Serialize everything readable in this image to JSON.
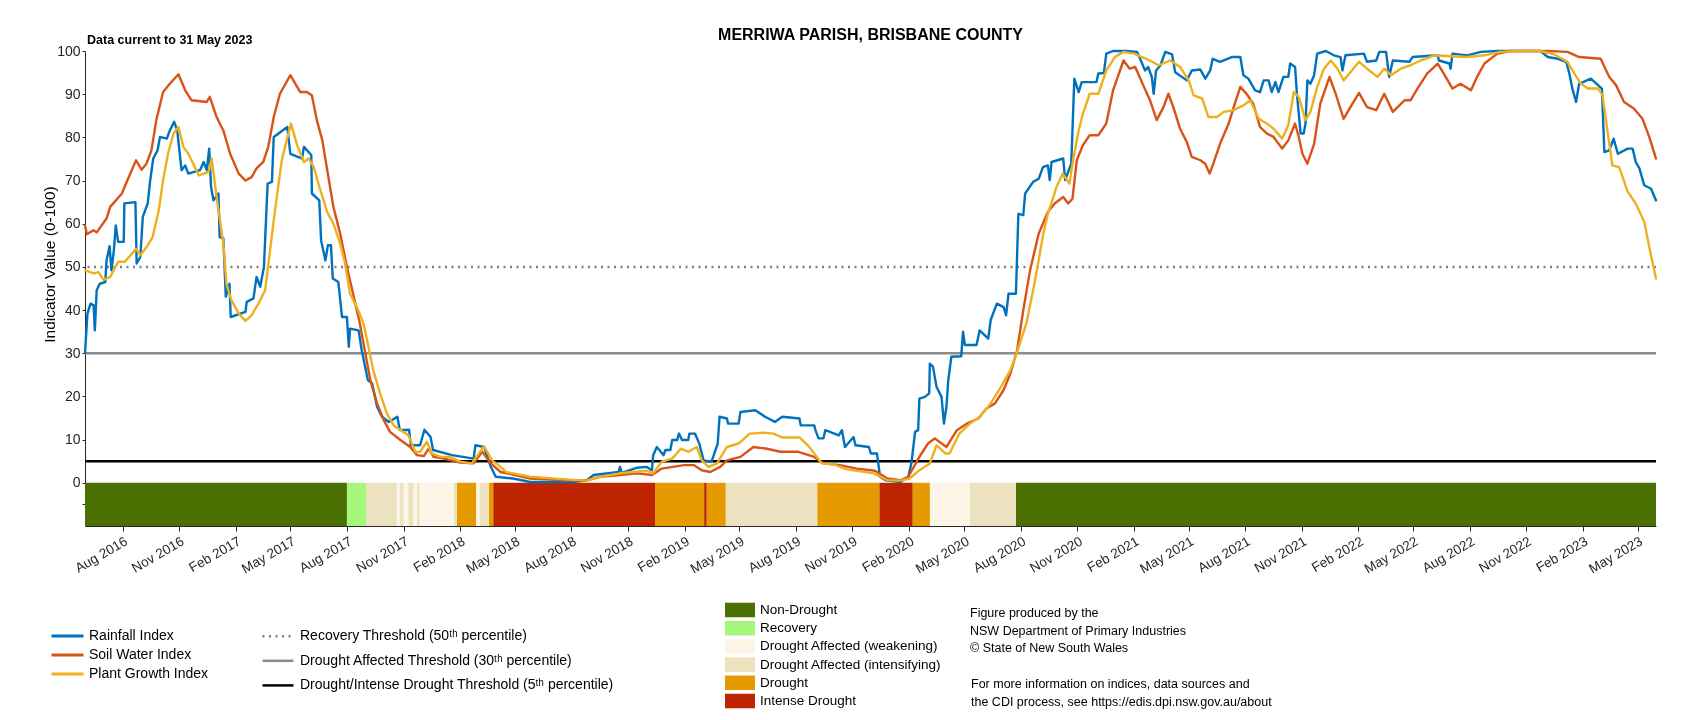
{
  "chart_data": {
    "type": "line",
    "title": "MERRIWA PARISH, BRISBANE COUNTY",
    "ylabel": "Indicator Value (0-100)",
    "annotations": [
      "Data current to 31 May 2023",
      "Figure produced by the\nNSW Department of Primary Industries\n© State of New South Wales",
      "For more information on indices, data sources and\nthe CDI process, see https://edis.dpi.nsw.gov.au/about"
    ],
    "xlim": [
      "2016-06-01",
      "2023-05-31"
    ],
    "ylim": [
      -10,
      100
    ],
    "xticks": [
      {
        "value": "2016-08-01",
        "label": "Aug 2016"
      },
      {
        "value": "2016-11-01",
        "label": "Nov 2016"
      },
      {
        "value": "2017-02-01",
        "label": "Feb 2017"
      },
      {
        "value": "2017-05-01",
        "label": "May 2017"
      },
      {
        "value": "2017-08-01",
        "label": "Aug 2017"
      },
      {
        "value": "2017-11-01",
        "label": "Nov 2017"
      },
      {
        "value": "2018-02-01",
        "label": "Feb 2018"
      },
      {
        "value": "2018-05-01",
        "label": "May 2018"
      },
      {
        "value": "2018-08-01",
        "label": "Aug 2018"
      },
      {
        "value": "2018-11-01",
        "label": "Nov 2018"
      },
      {
        "value": "2019-02-01",
        "label": "Feb 2019"
      },
      {
        "value": "2019-05-01",
        "label": "May 2019"
      },
      {
        "value": "2019-08-01",
        "label": "Aug 2019"
      },
      {
        "value": "2019-11-01",
        "label": "Nov 2019"
      },
      {
        "value": "2020-02-01",
        "label": "Feb 2020"
      },
      {
        "value": "2020-05-01",
        "label": "May 2020"
      },
      {
        "value": "2020-08-01",
        "label": "Aug 2020"
      },
      {
        "value": "2020-11-01",
        "label": "Nov 2020"
      },
      {
        "value": "2021-02-01",
        "label": "Feb 2021"
      },
      {
        "value": "2021-05-01",
        "label": "May 2021"
      },
      {
        "value": "2021-08-01",
        "label": "Aug 2021"
      },
      {
        "value": "2021-11-01",
        "label": "Nov 2021"
      },
      {
        "value": "2022-02-01",
        "label": "Feb 2022"
      },
      {
        "value": "2022-05-01",
        "label": "May 2022"
      },
      {
        "value": "2022-08-01",
        "label": "Aug 2022"
      },
      {
        "value": "2022-11-01",
        "label": "Nov 2022"
      },
      {
        "value": "2023-02-01",
        "label": "Feb 2023"
      },
      {
        "value": "2023-05-01",
        "label": "May 2023"
      }
    ],
    "yticks": [
      {
        "value": -5,
        "label": null
      },
      0,
      10,
      20,
      30,
      40,
      50,
      60,
      70,
      80,
      90,
      100
    ],
    "legend": "bottom",
    "series": [
      {
        "name": "Rainfall Index",
        "color": "#0072bd",
        "x": [
          "2016-06-01",
          "2016-06-05",
          "2016-06-10",
          "2016-06-15",
          "2016-06-17",
          "2016-06-20",
          "2016-06-25",
          "2016-07-04",
          "2016-07-06",
          "2016-07-11",
          "2016-07-14",
          "2016-07-18",
          "2016-07-21",
          "2016-07-25",
          "2016-08-03",
          "2016-08-04",
          "2016-08-22",
          "2016-08-24",
          "2016-08-30",
          "2016-09-03",
          "2016-09-11",
          "2016-09-15",
          "2016-09-20",
          "2016-09-27",
          "2016-10-01",
          "2016-10-12",
          "2016-10-17",
          "2016-10-24",
          "2016-10-29",
          "2016-11-05",
          "2016-11-11",
          "2016-11-16",
          "2016-12-05",
          "2016-12-11",
          "2016-12-16",
          "2016-12-20",
          "2016-12-23",
          "2016-12-27",
          "2017-01-04",
          "2017-01-06",
          "2017-01-12",
          "2017-01-16",
          "2017-01-22",
          "2017-01-24",
          "2017-02-17",
          "2017-02-19",
          "2017-03-02",
          "2017-03-07",
          "2017-03-13",
          "2017-03-19",
          "2017-03-25",
          "2017-04-01",
          "2017-04-04",
          "2017-04-26",
          "2017-05-01",
          "2017-05-20",
          "2017-05-23",
          "2017-06-04",
          "2017-06-05",
          "2017-06-17",
          "2017-06-20",
          "2017-06-27",
          "2017-07-01",
          "2017-07-06",
          "2017-07-09",
          "2017-07-18",
          "2017-07-24",
          "2017-08-01",
          "2017-08-04",
          "2017-08-06",
          "2017-08-20",
          "2017-08-25",
          "2017-09-04",
          "2017-09-11",
          "2017-09-19",
          "2017-09-27",
          "2017-10-08",
          "2017-10-22",
          "2017-10-26",
          "2017-11-10",
          "2017-11-13",
          "2017-11-28",
          "2017-12-05",
          "2017-12-15",
          "2017-12-19",
          "2018-01-19",
          "2018-02-23",
          "2018-02-26",
          "2018-03-12",
          "2018-03-23",
          "2018-03-31",
          "2018-04-28",
          "2018-05-26",
          "2018-08-04",
          "2018-08-26",
          "2018-09-06",
          "2018-10-17",
          "2018-10-19",
          "2018-10-22",
          "2018-11-16",
          "2018-12-01",
          "2018-12-10",
          "2018-12-12",
          "2018-12-18",
          "2018-12-29",
          "2019-01-01",
          "2019-01-09",
          "2019-01-12",
          "2019-01-20",
          "2019-01-23",
          "2019-01-28",
          "2019-02-07",
          "2019-02-09",
          "2019-02-18",
          "2019-02-25",
          "2019-03-04",
          "2019-03-17",
          "2019-03-27",
          "2019-03-30",
          "2019-04-11",
          "2019-04-13",
          "2019-04-30",
          "2019-05-03",
          "2019-05-27",
          "2019-06-12",
          "2019-06-28",
          "2019-07-10",
          "2019-08-07",
          "2019-08-09",
          "2019-08-31",
          "2019-09-02",
          "2019-09-07",
          "2019-09-15",
          "2019-09-18",
          "2019-10-10",
          "2019-10-15",
          "2019-10-20",
          "2019-11-03",
          "2019-11-06",
          "2019-11-28",
          "2019-12-01",
          "2019-12-11",
          "2019-12-16",
          "2019-12-25",
          "2020-01-18",
          "2020-01-31",
          "2020-02-05",
          "2020-02-11",
          "2020-02-16",
          "2020-02-18",
          "2020-02-27",
          "2020-03-05",
          "2020-03-06",
          "2020-03-11",
          "2020-03-17",
          "2020-03-25",
          "2020-03-29",
          "2020-04-02",
          "2020-04-05",
          "2020-04-10",
          "2020-04-26",
          "2020-04-29",
          "2020-05-02",
          "2020-05-21",
          "2020-05-26",
          "2020-06-09",
          "2020-06-13",
          "2020-06-23",
          "2020-07-04",
          "2020-07-08",
          "2020-07-12",
          "2020-07-24",
          "2020-07-28",
          "2020-08-05",
          "2020-08-08",
          "2020-08-21",
          "2020-08-30",
          "2020-09-06",
          "2020-09-14",
          "2020-09-17",
          "2020-09-20",
          "2020-10-09",
          "2020-10-12",
          "2020-10-22",
          "2020-10-27",
          "2020-11-03",
          "2020-11-08",
          "2020-12-02",
          "2020-12-05",
          "2020-12-14",
          "2020-12-18",
          "2020-12-29",
          "2021-01-20",
          "2021-02-06",
          "2021-02-11",
          "2021-02-19",
          "2021-02-24",
          "2021-03-02",
          "2021-03-05",
          "2021-03-09",
          "2021-03-16",
          "2021-03-24",
          "2021-04-04",
          "2021-04-09",
          "2021-04-28",
          "2021-05-06",
          "2021-05-20",
          "2021-05-28",
          "2021-06-05",
          "2021-06-09",
          "2021-06-21",
          "2021-07-10",
          "2021-07-24",
          "2021-07-29",
          "2021-08-06",
          "2021-08-17",
          "2021-08-25",
          "2021-08-31",
          "2021-09-08",
          "2021-09-13",
          "2021-09-19",
          "2021-09-24",
          "2021-10-02",
          "2021-10-10",
          "2021-10-13",
          "2021-10-21",
          "2021-10-24",
          "2021-10-30",
          "2021-11-04",
          "2021-11-07",
          "2021-11-10",
          "2021-11-15",
          "2021-11-21",
          "2021-11-26",
          "2021-12-10",
          "2021-12-23",
          "2022-01-03",
          "2022-01-06",
          "2022-01-11",
          "2022-02-10",
          "2022-02-15",
          "2022-03-02",
          "2022-03-07",
          "2022-03-18",
          "2022-03-23",
          "2022-03-29",
          "2022-04-25",
          "2022-04-30",
          "2022-06-10",
          "2022-06-12",
          "2022-06-29",
          "2022-07-01",
          "2022-07-04",
          "2022-07-28",
          "2022-08-19",
          "2022-09-15",
          "2022-11-24",
          "2022-12-06",
          "2022-12-22",
          "2023-01-05",
          "2023-01-10",
          "2023-01-15",
          "2023-01-21",
          "2023-01-26",
          "2023-02-14",
          "2023-03-04",
          "2023-03-08",
          "2023-03-16",
          "2023-03-23",
          "2023-03-30",
          "2023-04-15",
          "2023-04-23",
          "2023-04-28",
          "2023-05-04",
          "2023-05-12",
          "2023-05-23",
          "2023-05-31"
        ],
        "values": [
          30,
          39.2,
          41.5,
          41.1,
          35.3,
          44.6,
          46.1,
          46.5,
          51.5,
          54.8,
          49.2,
          53.9,
          59.6,
          55.8,
          55.8,
          64.7,
          65,
          50.8,
          52.3,
          61.6,
          64.7,
          70,
          75.1,
          77,
          80.1,
          79.7,
          81.6,
          83.6,
          81.6,
          72.4,
          73.5,
          71.6,
          72.4,
          74.3,
          72.4,
          77.4,
          68.5,
          65.4,
          67,
          56.9,
          56.6,
          43.1,
          46.1,
          38.4,
          39.6,
          41.9,
          42.7,
          47.7,
          45.4,
          50,
          69.3,
          69.7,
          80.1,
          82.4,
          76.2,
          75.1,
          77.8,
          75.9,
          67,
          65.4,
          56.2,
          51.5,
          55,
          55,
          47.3,
          46.5,
          38.4,
          38.4,
          31.5,
          35.7,
          35.3,
          30.7,
          23.8,
          23,
          17.6,
          15.3,
          14.1,
          15.3,
          12.2,
          12.3,
          8.7,
          8.7,
          12.3,
          10.6,
          7.6,
          6.4,
          5.6,
          8.7,
          8.3,
          3.7,
          1.4,
          1.0,
          0.2,
          0.2,
          0.6,
          1.8,
          2.5,
          3.7,
          2.3,
          3.5,
          3.7,
          2.9,
          6.4,
          8.3,
          6.4,
          7.6,
          7.6,
          9.9,
          9.9,
          11.4,
          9.9,
          9.9,
          11.4,
          11.4,
          9.1,
          5.2,
          4.9,
          9.1,
          15.3,
          14.9,
          13.7,
          13.7,
          16.4,
          16.8,
          15.3,
          14.1,
          15.3,
          14.9,
          13.3,
          13.3,
          12.2,
          10.3,
          10.3,
          12.2,
          11,
          12.2,
          8.3,
          10.6,
          8.7,
          8.3,
          6.8,
          6.8,
          1.4,
          0.6,
          0.2,
          1.4,
          4.5,
          11.8,
          12.2,
          19.5,
          19.9,
          20.7,
          27.6,
          26.9,
          22.2,
          19.9,
          13.7,
          17.6,
          23.8,
          29.2,
          29.3,
          35,
          31.9,
          31.9,
          35.3,
          33.4,
          37.7,
          41.5,
          40.7,
          38.8,
          43.8,
          43.8,
          62.3,
          62,
          67,
          69.7,
          70.4,
          73.1,
          73.5,
          70.1,
          74.3,
          75.1,
          70.1,
          73.9,
          93.6,
          90.5,
          92.8,
          92.8,
          94.8,
          94.9,
          99.4,
          100,
          100,
          99.8,
          98.2,
          95.5,
          96.3,
          94,
          90.1,
          95.5,
          96.7,
          99.8,
          99.2,
          95.1,
          93.2,
          95.5,
          95.7,
          93.6,
          95.5,
          98.2,
          97.5,
          98.6,
          98.6,
          94.4,
          93.6,
          90.9,
          90.5,
          93.2,
          93.2,
          90.5,
          92.8,
          90.5,
          94,
          94,
          97.1,
          96.3,
          90.1,
          80.9,
          80.9,
          83.2,
          93.2,
          92.4,
          94.4,
          99.4,
          100,
          99,
          98.6,
          95.5,
          99,
          99.4,
          97.5,
          97.8,
          99.8,
          99.8,
          94,
          97.8,
          97.5,
          98.6,
          99,
          97.8,
          97.1,
          95.9,
          99.4,
          99,
          99.8,
          100,
          100,
          98.6,
          98.2,
          97.5,
          94.8,
          91.3,
          88.2,
          92.4,
          93.6,
          91.3,
          76.6,
          77,
          79.7,
          76.2,
          77.4,
          77.4,
          74.3,
          72.8,
          68.9,
          68.1,
          65.4
        ]
      },
      {
        "name": "Soil Water Index",
        "color": "#d95319",
        "x": [
          "2016-06-01",
          "2016-06-04",
          "2016-06-15",
          "2016-06-20",
          "2016-07-06",
          "2016-07-12",
          "2016-07-31",
          "2016-08-08",
          "2016-08-23",
          "2016-09-01",
          "2016-09-09",
          "2016-09-17",
          "2016-09-25",
          "2016-10-06",
          "2016-10-17",
          "2016-10-31",
          "2016-11-11",
          "2016-11-21",
          "2016-12-16",
          "2016-12-21",
          "2017-01-01",
          "2017-01-12",
          "2017-01-23",
          "2017-02-06",
          "2017-02-17",
          "2017-02-27",
          "2017-03-07",
          "2017-03-18",
          "2017-03-26",
          "2017-04-04",
          "2017-04-14",
          "2017-05-01",
          "2017-05-17",
          "2017-05-28",
          "2017-06-05",
          "2017-06-13",
          "2017-06-22",
          "2017-06-30",
          "2017-07-10",
          "2017-07-21",
          "2017-08-01",
          "2017-08-11",
          "2017-08-22",
          "2017-08-30",
          "2017-09-08",
          "2017-09-19",
          "2017-09-30",
          "2017-10-10",
          "2017-10-27",
          "2017-11-12",
          "2017-11-23",
          "2017-12-04",
          "2017-12-12",
          "2017-12-20",
          "2018-01-06",
          "2018-02-01",
          "2018-02-23",
          "2018-03-09",
          "2018-03-23",
          "2018-04-08",
          "2018-05-26",
          "2018-07-23",
          "2018-08-26",
          "2018-09-17",
          "2018-10-19",
          "2018-11-16",
          "2018-12-10",
          "2018-12-26",
          "2019-01-31",
          "2019-02-16",
          "2019-03-01",
          "2019-03-15",
          "2019-03-31",
          "2019-04-11",
          "2019-05-03",
          "2019-05-24",
          "2019-06-15",
          "2019-07-07",
          "2019-08-04",
          "2019-08-31",
          "2019-09-15",
          "2019-10-12",
          "2019-11-08",
          "2019-12-08",
          "2019-12-28",
          "2020-01-18",
          "2020-01-31",
          "2020-02-18",
          "2020-03-03",
          "2020-03-14",
          "2020-04-02",
          "2020-04-19",
          "2020-05-05",
          "2020-05-24",
          "2020-06-06",
          "2020-06-20",
          "2020-07-04",
          "2020-07-15",
          "2020-07-26",
          "2020-08-05",
          "2020-08-16",
          "2020-08-30",
          "2020-09-14",
          "2020-09-25",
          "2020-10-09",
          "2020-10-17",
          "2020-10-24",
          "2020-10-31",
          "2020-11-10",
          "2020-11-21",
          "2020-12-05",
          "2020-12-18",
          "2020-12-29",
          "2021-01-15",
          "2021-01-25",
          "2021-02-03",
          "2021-02-16",
          "2021-02-27",
          "2021-03-10",
          "2021-03-21",
          "2021-03-29",
          "2021-04-06",
          "2021-04-17",
          "2021-04-28",
          "2021-05-06",
          "2021-05-20",
          "2021-05-28",
          "2021-06-04",
          "2021-06-10",
          "2021-06-21",
          "2021-07-05",
          "2021-07-15",
          "2021-07-24",
          "2021-08-03",
          "2021-08-14",
          "2021-08-25",
          "2021-09-05",
          "2021-09-16",
          "2021-09-30",
          "2021-10-10",
          "2021-10-21",
          "2021-10-27",
          "2021-11-02",
          "2021-11-10",
          "2021-11-21",
          "2021-12-01",
          "2021-12-16",
          "2021-12-26",
          "2022-01-08",
          "2022-01-19",
          "2022-02-02",
          "2022-02-15",
          "2022-03-02",
          "2022-03-15",
          "2022-03-29",
          "2022-04-17",
          "2022-04-27",
          "2022-05-08",
          "2022-05-24",
          "2022-06-10",
          "2022-06-23",
          "2022-07-04",
          "2022-07-17",
          "2022-08-03",
          "2022-08-13",
          "2022-08-25",
          "2022-09-15",
          "2022-10-06",
          "2022-12-06",
          "2023-01-07",
          "2023-01-26",
          "2023-03-02",
          "2023-03-16",
          "2023-03-27",
          "2023-04-09",
          "2023-04-25",
          "2023-05-09",
          "2023-05-20",
          "2023-05-31"
        ],
        "values": [
          59.6,
          57.6,
          58.5,
          58,
          61.2,
          63.9,
          67,
          69.7,
          74.7,
          72.5,
          73.9,
          77,
          84,
          90.5,
          92.4,
          94.6,
          90.9,
          88.6,
          88.2,
          89.4,
          84.7,
          81.6,
          76.2,
          71.6,
          70,
          70.8,
          72.8,
          74.3,
          77.8,
          84.7,
          90.1,
          94.4,
          90.5,
          90.5,
          89.7,
          84,
          79.3,
          72.4,
          63.9,
          57.7,
          50,
          43.8,
          36.9,
          30.7,
          23.8,
          18.4,
          14.5,
          11.8,
          9.9,
          8.3,
          6.4,
          6.2,
          7.9,
          6,
          5.6,
          4.7,
          4.5,
          7.2,
          4.5,
          2.5,
          1.0,
          0.6,
          0.6,
          1.4,
          1.8,
          2.2,
          1.8,
          3.3,
          4.1,
          4.1,
          2.9,
          2.5,
          3.7,
          5.2,
          6,
          8.3,
          7.9,
          7.2,
          7.2,
          6,
          4.5,
          4.1,
          3.3,
          2.8,
          1.0,
          0.6,
          1.4,
          6,
          9.1,
          10.3,
          8.3,
          12.2,
          13.7,
          14.9,
          17.2,
          18.4,
          21.5,
          25.3,
          30.7,
          40,
          49.2,
          57.7,
          62.7,
          64.7,
          66.2,
          64.7,
          65.8,
          74.7,
          78.2,
          80.5,
          80.5,
          83.2,
          90.9,
          97.8,
          95.9,
          96.3,
          92.1,
          88.6,
          84,
          87,
          90.1,
          87,
          82,
          78.9,
          75.5,
          74.7,
          73.9,
          71.6,
          73.9,
          78.5,
          83.2,
          87.8,
          91.7,
          90.1,
          87.8,
          82.4,
          80.9,
          80.1,
          77.4,
          79.3,
          83.2,
          80.1,
          76.2,
          73.9,
          78.5,
          87.8,
          94,
          90.1,
          84.3,
          87,
          90.3,
          87,
          86.3,
          90.1,
          85.9,
          88.6,
          88.6,
          91.3,
          94.8,
          97.1,
          94,
          91.3,
          92.4,
          90.9,
          94,
          97.1,
          99.4,
          100,
          100,
          99.8,
          98.6,
          98.2,
          94,
          92.1,
          88.2,
          86.7,
          84.3,
          80.1,
          75.1
        ]
      },
      {
        "name": "Plant Growth Index",
        "color": "#edb120",
        "x": [
          "2016-06-01",
          "2016-06-15",
          "2016-06-23",
          "2016-07-01",
          "2016-07-12",
          "2016-07-25",
          "2016-08-05",
          "2016-08-23",
          "2016-08-30",
          "2016-09-09",
          "2016-09-19",
          "2016-09-29",
          "2016-10-06",
          "2016-10-14",
          "2016-10-23",
          "2016-10-31",
          "2016-11-08",
          "2016-11-16",
          "2016-11-24",
          "2016-12-03",
          "2016-12-19",
          "2016-12-24",
          "2017-01-01",
          "2017-01-12",
          "2017-01-17",
          "2017-01-25",
          "2017-02-06",
          "2017-02-17",
          "2017-02-27",
          "2017-03-10",
          "2017-03-21",
          "2017-03-29",
          "2017-04-06",
          "2017-04-17",
          "2017-04-25",
          "2017-05-02",
          "2017-05-12",
          "2017-05-23",
          "2017-05-31",
          "2017-06-08",
          "2017-06-18",
          "2017-06-30",
          "2017-07-10",
          "2017-07-21",
          "2017-07-29",
          "2017-08-06",
          "2017-08-17",
          "2017-08-28",
          "2017-09-05",
          "2017-09-13",
          "2017-09-24",
          "2017-10-05",
          "2017-10-16",
          "2017-11-09",
          "2017-11-20",
          "2017-11-28",
          "2017-12-09",
          "2017-12-17",
          "2017-12-31",
          "2018-01-16",
          "2018-02-01",
          "2018-02-20",
          "2018-03-12",
          "2018-03-25",
          "2018-04-08",
          "2018-04-17",
          "2018-05-26",
          "2018-07-23",
          "2018-08-26",
          "2018-09-17",
          "2018-10-19",
          "2018-12-01",
          "2018-12-12",
          "2018-12-26",
          "2019-01-12",
          "2019-01-26",
          "2019-02-07",
          "2019-02-21",
          "2019-03-01",
          "2019-03-12",
          "2019-03-26",
          "2019-04-11",
          "2019-04-30",
          "2019-05-18",
          "2019-06-09",
          "2019-06-26",
          "2019-07-10",
          "2019-08-07",
          "2019-08-23",
          "2019-09-12",
          "2019-10-01",
          "2019-10-23",
          "2019-12-06",
          "2019-12-28",
          "2020-01-18",
          "2020-02-02",
          "2020-02-18",
          "2020-03-06",
          "2020-03-17",
          "2020-03-31",
          "2020-04-07",
          "2020-04-23",
          "2020-05-10",
          "2020-05-26",
          "2020-06-11",
          "2020-06-28",
          "2020-07-15",
          "2020-07-26",
          "2020-08-10",
          "2020-08-21",
          "2020-08-30",
          "2020-09-06",
          "2020-09-14",
          "2020-09-28",
          "2020-10-08",
          "2020-10-19",
          "2020-10-24",
          "2020-11-03",
          "2020-11-10",
          "2020-11-21",
          "2020-12-05",
          "2020-12-18",
          "2021-01-01",
          "2021-01-15",
          "2021-02-01",
          "2021-02-21",
          "2021-03-13",
          "2021-04-01",
          "2021-04-17",
          "2021-05-01",
          "2021-05-09",
          "2021-05-23",
          "2021-06-02",
          "2021-06-16",
          "2021-06-27",
          "2021-07-13",
          "2021-07-29",
          "2021-08-09",
          "2021-08-23",
          "2021-09-05",
          "2021-09-16",
          "2021-09-30",
          "2021-10-10",
          "2021-10-19",
          "2021-10-27",
          "2021-11-07",
          "2021-11-15",
          "2021-11-26",
          "2021-12-07",
          "2021-12-18",
          "2021-12-29",
          "2022-01-08",
          "2022-01-19",
          "2022-02-02",
          "2022-02-15",
          "2022-03-04",
          "2022-03-15",
          "2022-03-26",
          "2022-04-11",
          "2022-04-27",
          "2022-05-13",
          "2022-06-05",
          "2022-07-01",
          "2022-07-28",
          "2022-08-25",
          "2022-09-20",
          "2022-10-23",
          "2022-11-24",
          "2022-12-17",
          "2023-01-07",
          "2023-01-18",
          "2023-01-29",
          "2023-02-09",
          "2023-02-26",
          "2023-03-05",
          "2023-03-13",
          "2023-03-21",
          "2023-04-01",
          "2023-04-15",
          "2023-04-28",
          "2023-05-12",
          "2023-05-20",
          "2023-05-31"
        ],
        "values": [
          49.2,
          48.5,
          48.8,
          47,
          47.7,
          51.2,
          51.2,
          54.2,
          52.7,
          54.6,
          56.9,
          63.1,
          70.1,
          76.2,
          80.9,
          82.4,
          77.8,
          76.2,
          73.9,
          71.2,
          72,
          75.1,
          66.2,
          55.4,
          46.1,
          42.3,
          39.2,
          37.5,
          38.8,
          41.5,
          44.6,
          53.9,
          63.1,
          74.7,
          79.3,
          83.2,
          78.2,
          74.3,
          75.1,
          73.1,
          68.1,
          62.7,
          60,
          55.4,
          50.8,
          43.8,
          40.7,
          36.9,
          31.5,
          26,
          20.7,
          16,
          13.3,
          11,
          7.2,
          7.2,
          9.5,
          6.8,
          6,
          6,
          4.9,
          4.5,
          8.5,
          5.2,
          3.7,
          2.5,
          1.4,
          0.8,
          0.5,
          1.4,
          2.2,
          2.8,
          2.2,
          4.9,
          5.6,
          7.9,
          7.2,
          8.3,
          5.2,
          3.7,
          4.5,
          8.3,
          9.1,
          11.4,
          11.6,
          11.4,
          10.5,
          10.5,
          8.3,
          4.5,
          4.3,
          3.1,
          2.2,
          0.6,
          0.5,
          1.0,
          2.9,
          4.5,
          8.7,
          6.8,
          6.8,
          11.4,
          13.7,
          15.3,
          18,
          21.8,
          26.1,
          30.3,
          36.9,
          44.6,
          51.5,
          57.3,
          62.3,
          68.5,
          71.6,
          69.3,
          73.9,
          81.6,
          85.5,
          90.1,
          90.1,
          95.5,
          98.6,
          99.8,
          99.4,
          98.2,
          96.7,
          97.8,
          96.3,
          93.2,
          89.7,
          89,
          84.7,
          84.7,
          85.9,
          86.3,
          87.4,
          88.6,
          84.3,
          83.2,
          82,
          79.7,
          82.8,
          90.5,
          89.4,
          84,
          85.9,
          91.7,
          95.9,
          97.8,
          95.9,
          93.2,
          95.1,
          97.5,
          95.9,
          94,
          95.9,
          94.4,
          95.9,
          96.7,
          97.8,
          99,
          98.8,
          98.6,
          99,
          99.8,
          100,
          100,
          99.2,
          97.5,
          94.8,
          92.4,
          91.3,
          91.3,
          89.7,
          81.6,
          73.5,
          73.1,
          67.4,
          64.7,
          60.4,
          54.6,
          47.3
        ]
      }
    ],
    "ref_lines": [
      {
        "axis": "y",
        "value": 50,
        "label": "Recovery Threshold (50ᵗʰ percentile)",
        "color": "#7f7f7f",
        "line_style": "dotted"
      },
      {
        "axis": "y",
        "value": 30,
        "label": "Drought Affected Threshold (30ᵗʰ percentile)",
        "color": "#8c8c8c",
        "line_style": "solid"
      },
      {
        "axis": "y",
        "value": 5,
        "label": "Drought/Intense Drought Threshold (5ᵗʰ percentile)",
        "color": "#000000",
        "line_style": "solid"
      }
    ],
    "bands": [
      {
        "axis": "x",
        "from": "2016-06-01",
        "to": "2017-08-01",
        "label": "Non-Drought",
        "color": "#4c7103"
      },
      {
        "axis": "x",
        "from": "2020-07-24",
        "to": "2023-05-31",
        "color": "#4c7103"
      },
      {
        "axis": "x",
        "from": "2017-08-01",
        "to": "2017-09-01",
        "label": "Recovery",
        "color": "#a4f77a"
      },
      {
        "axis": "x",
        "from": "2017-10-21",
        "to": "2017-10-26",
        "label": "Drought Affected (weakening)",
        "color": "#fdf5e8"
      },
      {
        "axis": "x",
        "from": "2017-11-01",
        "to": "2017-11-09",
        "color": "#fdf5e8"
      },
      {
        "axis": "x",
        "from": "2017-11-17",
        "to": "2017-11-23",
        "color": "#fdf5e8"
      },
      {
        "axis": "x",
        "from": "2017-11-27",
        "to": "2018-01-22",
        "color": "#fdf5e8"
      },
      {
        "axis": "x",
        "from": "2018-02-27",
        "to": "2018-03-05",
        "color": "#fdf5e8"
      },
      {
        "axis": "x",
        "from": "2020-03-06",
        "to": "2020-05-10",
        "color": "#fdf5e8"
      },
      {
        "axis": "x",
        "from": "2017-09-01",
        "to": "2017-10-21",
        "label": "Drought Affected (intensifying)",
        "color": "#ede2bf"
      },
      {
        "axis": "x",
        "from": "2017-10-26",
        "to": "2017-11-01",
        "color": "#ede2bf"
      },
      {
        "axis": "x",
        "from": "2017-11-09",
        "to": "2017-11-17",
        "color": "#ede2bf"
      },
      {
        "axis": "x",
        "from": "2017-11-23",
        "to": "2017-11-27",
        "color": "#ede2bf"
      },
      {
        "axis": "x",
        "from": "2018-01-22",
        "to": "2018-01-27",
        "color": "#ede2bf"
      },
      {
        "axis": "x",
        "from": "2018-03-05",
        "to": "2018-03-20",
        "color": "#ede2bf"
      },
      {
        "axis": "x",
        "from": "2019-04-09",
        "to": "2019-09-05",
        "color": "#ede2bf"
      },
      {
        "axis": "x",
        "from": "2020-05-10",
        "to": "2020-07-24",
        "color": "#ede2bf"
      },
      {
        "axis": "x",
        "from": "2018-01-27",
        "to": "2018-02-27",
        "label": "Drought",
        "color": "#e59a00"
      },
      {
        "axis": "x",
        "from": "2018-03-20",
        "to": "2018-03-27",
        "color": "#e59a00"
      },
      {
        "axis": "x",
        "from": "2018-12-15",
        "to": "2019-03-05",
        "color": "#e59a00"
      },
      {
        "axis": "x",
        "from": "2019-03-09",
        "to": "2019-04-09",
        "color": "#e59a00"
      },
      {
        "axis": "x",
        "from": "2019-09-05",
        "to": "2019-12-15",
        "color": "#e59a00"
      },
      {
        "axis": "x",
        "from": "2020-02-07",
        "to": "2020-03-06",
        "color": "#e59a00"
      },
      {
        "axis": "x",
        "from": "2018-03-27",
        "to": "2018-12-15",
        "label": "Intense Drought",
        "color": "#be2500"
      },
      {
        "axis": "x",
        "from": "2019-03-05",
        "to": "2019-03-09",
        "color": "#be2500"
      },
      {
        "axis": "x",
        "from": "2019-12-15",
        "to": "2020-02-07",
        "color": "#be2500"
      }
    ]
  }
}
